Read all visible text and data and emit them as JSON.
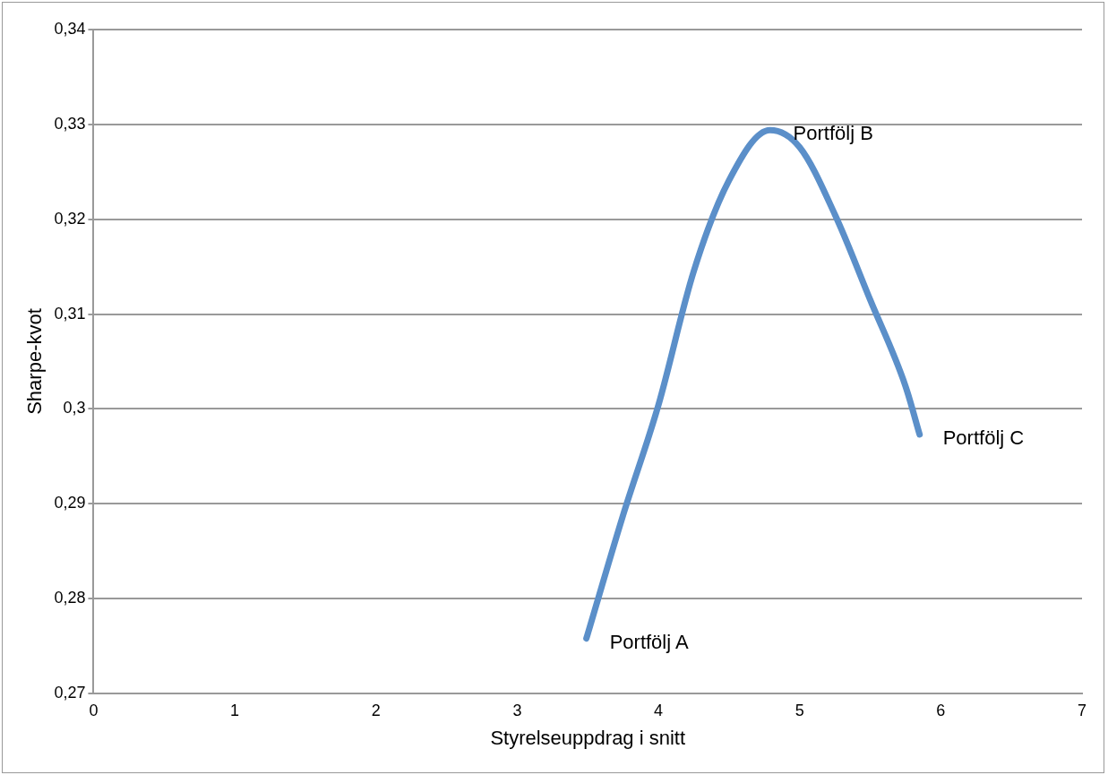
{
  "chart_data": {
    "type": "line",
    "xlabel": "Styrelseuppdrag i snitt",
    "ylabel": "Sharpe-kvot",
    "xlim": [
      0,
      7
    ],
    "xticks": [
      0,
      1,
      2,
      3,
      4,
      5,
      6,
      7
    ],
    "ylim": [
      0.27,
      0.34
    ],
    "yticks": [
      {
        "value": 0.27,
        "label": "0,27"
      },
      {
        "value": 0.28,
        "label": "0,28"
      },
      {
        "value": 0.29,
        "label": "0,29"
      },
      {
        "value": 0.3,
        "label": "0,3"
      },
      {
        "value": 0.31,
        "label": "0,31"
      },
      {
        "value": 0.32,
        "label": "0,32"
      },
      {
        "value": 0.33,
        "label": "0,33"
      },
      {
        "value": 0.34,
        "label": "0,34"
      }
    ],
    "series": [
      {
        "color": "#5b8fc9",
        "x": [
          3.49,
          3.75,
          4,
          4.25,
          4.5,
          4.79,
          5,
          5.25,
          5.5,
          5.75,
          5.85
        ],
        "values": [
          0.2758,
          0.2888,
          0.3004,
          0.3145,
          0.3241,
          0.3294,
          0.3276,
          0.3205,
          0.3115,
          0.3024,
          0.2973
        ]
      }
    ],
    "annotations": [
      {
        "text": "Portfölj A",
        "x": 3.49,
        "y": 0.2758
      },
      {
        "text": "Portfölj B",
        "x": 4.79,
        "y": 0.3294
      },
      {
        "text": "Portfölj C",
        "x": 5.85,
        "y": 0.2973
      }
    ],
    "grid": "y",
    "legend": false,
    "marker": "none",
    "line_style": "solid"
  }
}
